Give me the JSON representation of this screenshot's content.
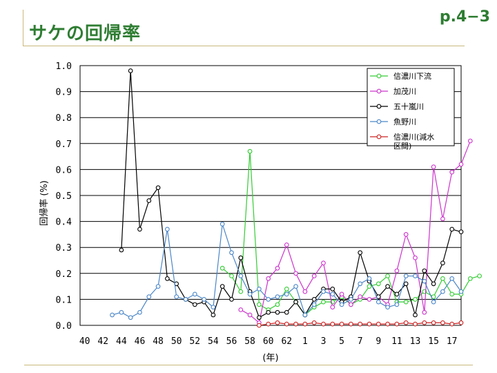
{
  "header": {
    "title": "サケの回帰率",
    "page_number": "p.4−3"
  },
  "colors": {
    "title": "#2e7d32",
    "rule": "#c9b87a"
  },
  "chart_data": {
    "type": "line",
    "title": "",
    "xlabel": "(年)",
    "ylabel": "回帰率 (%)",
    "ylim": [
      0,
      1.0
    ],
    "y_ticks": [
      "0.0",
      "0.1",
      "0.2",
      "0.3",
      "0.4",
      "0.5",
      "0.6",
      "0.7",
      "0.8",
      "0.9",
      "1.0"
    ],
    "x_ticks": [
      "40",
      "42",
      "44",
      "46",
      "48",
      "50",
      "52",
      "54",
      "56",
      "58",
      "60",
      "62",
      "1",
      "3",
      "5",
      "7",
      "9",
      "11",
      "13",
      "15",
      "17"
    ],
    "x_range": [
      1965,
      2006
    ],
    "grid": true,
    "legend_position": "top-right",
    "series": [
      {
        "name": "信濃川下流",
        "color": "#33cc33",
        "points": [
          [
            1980,
            0.22
          ],
          [
            1981,
            0.19
          ],
          [
            1982,
            0.13
          ],
          [
            1983,
            0.67
          ],
          [
            1984,
            0.08
          ],
          [
            1985,
            0.06
          ],
          [
            1986,
            0.08
          ],
          [
            1987,
            0.14
          ],
          [
            1988,
            0.09
          ],
          [
            1989,
            0.04
          ],
          [
            1990,
            0.07
          ],
          [
            1991,
            0.09
          ],
          [
            1992,
            0.09
          ],
          [
            1993,
            0.11
          ],
          [
            1994,
            0.08
          ],
          [
            1995,
            0.1
          ],
          [
            1996,
            0.15
          ],
          [
            1997,
            0.16
          ],
          [
            1998,
            0.19
          ],
          [
            1999,
            0.09
          ],
          [
            2000,
            0.09
          ],
          [
            2001,
            0.1
          ],
          [
            2002,
            0.13
          ],
          [
            2003,
            0.11
          ],
          [
            2004,
            0.18
          ],
          [
            2005,
            0.12
          ],
          [
            2006,
            0.12
          ],
          [
            2007,
            0.18
          ],
          [
            2008,
            0.19
          ]
        ]
      },
      {
        "name": "加茂川",
        "color": "#cc33cc",
        "points": [
          [
            1982,
            0.06
          ],
          [
            1983,
            0.04
          ],
          [
            1984,
            0.01
          ],
          [
            1985,
            0.18
          ],
          [
            1986,
            0.22
          ],
          [
            1987,
            0.31
          ],
          [
            1988,
            0.2
          ],
          [
            1989,
            0.13
          ],
          [
            1990,
            0.19
          ],
          [
            1991,
            0.24
          ],
          [
            1992,
            0.07
          ],
          [
            1993,
            0.12
          ],
          [
            1994,
            0.08
          ],
          [
            1995,
            0.11
          ],
          [
            1996,
            0.1
          ],
          [
            1997,
            0.11
          ],
          [
            1998,
            0.08
          ],
          [
            1999,
            0.21
          ],
          [
            2000,
            0.35
          ],
          [
            2001,
            0.26
          ],
          [
            2002,
            0.05
          ],
          [
            2003,
            0.61
          ],
          [
            2004,
            0.41
          ],
          [
            2005,
            0.59
          ],
          [
            2006,
            0.62
          ],
          [
            2007,
            0.71
          ]
        ]
      },
      {
        "name": "五十嵐川",
        "color": "#000000",
        "points": [
          [
            1969,
            0.29
          ],
          [
            1970,
            0.98
          ],
          [
            1971,
            0.37
          ],
          [
            1972,
            0.48
          ],
          [
            1973,
            0.53
          ],
          [
            1974,
            0.18
          ],
          [
            1975,
            0.16
          ],
          [
            1976,
            0.1
          ],
          [
            1977,
            0.08
          ],
          [
            1978,
            0.09
          ],
          [
            1979,
            0.04
          ],
          [
            1980,
            0.15
          ],
          [
            1981,
            0.1
          ],
          [
            1982,
            0.26
          ],
          [
            1983,
            0.13
          ],
          [
            1984,
            0.03
          ],
          [
            1985,
            0.05
          ],
          [
            1986,
            0.05
          ],
          [
            1987,
            0.05
          ],
          [
            1988,
            0.09
          ],
          [
            1989,
            0.04
          ],
          [
            1990,
            0.1
          ],
          [
            1991,
            0.14
          ],
          [
            1992,
            0.14
          ],
          [
            1993,
            0.09
          ],
          [
            1994,
            0.11
          ],
          [
            1995,
            0.28
          ],
          [
            1996,
            0.17
          ],
          [
            1997,
            0.11
          ],
          [
            1998,
            0.15
          ],
          [
            1999,
            0.12
          ],
          [
            2000,
            0.16
          ],
          [
            2001,
            0.04
          ],
          [
            2002,
            0.21
          ],
          [
            2003,
            0.16
          ],
          [
            2004,
            0.24
          ],
          [
            2005,
            0.37
          ],
          [
            2006,
            0.36
          ]
        ]
      },
      {
        "name": "魚野川",
        "color": "#4a86c8",
        "points": [
          [
            1968,
            0.04
          ],
          [
            1969,
            0.05
          ],
          [
            1970,
            0.03
          ],
          [
            1971,
            0.05
          ],
          [
            1972,
            0.11
          ],
          [
            1973,
            0.15
          ],
          [
            1974,
            0.37
          ],
          [
            1975,
            0.11
          ],
          [
            1976,
            0.1
          ],
          [
            1977,
            0.12
          ],
          [
            1978,
            0.1
          ],
          [
            1979,
            0.07
          ],
          [
            1980,
            0.39
          ],
          [
            1981,
            0.28
          ],
          [
            1982,
            0.19
          ],
          [
            1983,
            0.12
          ],
          [
            1984,
            0.14
          ],
          [
            1985,
            0.1
          ],
          [
            1986,
            0.11
          ],
          [
            1987,
            0.12
          ],
          [
            1988,
            0.15
          ],
          [
            1989,
            0.04
          ],
          [
            1990,
            0.08
          ],
          [
            1991,
            0.13
          ],
          [
            1992,
            0.12
          ],
          [
            1993,
            0.08
          ],
          [
            1994,
            0.1
          ],
          [
            1995,
            0.16
          ],
          [
            1996,
            0.18
          ],
          [
            1997,
            0.09
          ],
          [
            1998,
            0.07
          ],
          [
            1999,
            0.08
          ],
          [
            2000,
            0.19
          ],
          [
            2001,
            0.19
          ],
          [
            2002,
            0.17
          ],
          [
            2003,
            0.09
          ],
          [
            2004,
            0.13
          ],
          [
            2005,
            0.18
          ],
          [
            2006,
            0.13
          ]
        ]
      },
      {
        "name": "信濃川(減水区間)",
        "color": "#cc2222",
        "legend_lines": [
          "信濃川(減水",
          "区間)"
        ],
        "points": [
          [
            1984,
            0.0
          ],
          [
            1985,
            0.005
          ],
          [
            1986,
            0.01
          ],
          [
            1987,
            0.005
          ],
          [
            1988,
            0.005
          ],
          [
            1989,
            0.005
          ],
          [
            1990,
            0.01
          ],
          [
            1991,
            0.005
          ],
          [
            1992,
            0.005
          ],
          [
            1993,
            0.005
          ],
          [
            1994,
            0.005
          ],
          [
            1995,
            0.005
          ],
          [
            1996,
            0.005
          ],
          [
            1997,
            0.005
          ],
          [
            1998,
            0.005
          ],
          [
            1999,
            0.005
          ],
          [
            2000,
            0.01
          ],
          [
            2001,
            0.005
          ],
          [
            2002,
            0.01
          ],
          [
            2003,
            0.01
          ],
          [
            2004,
            0.01
          ],
          [
            2005,
            0.005
          ],
          [
            2006,
            0.01
          ]
        ]
      }
    ]
  }
}
